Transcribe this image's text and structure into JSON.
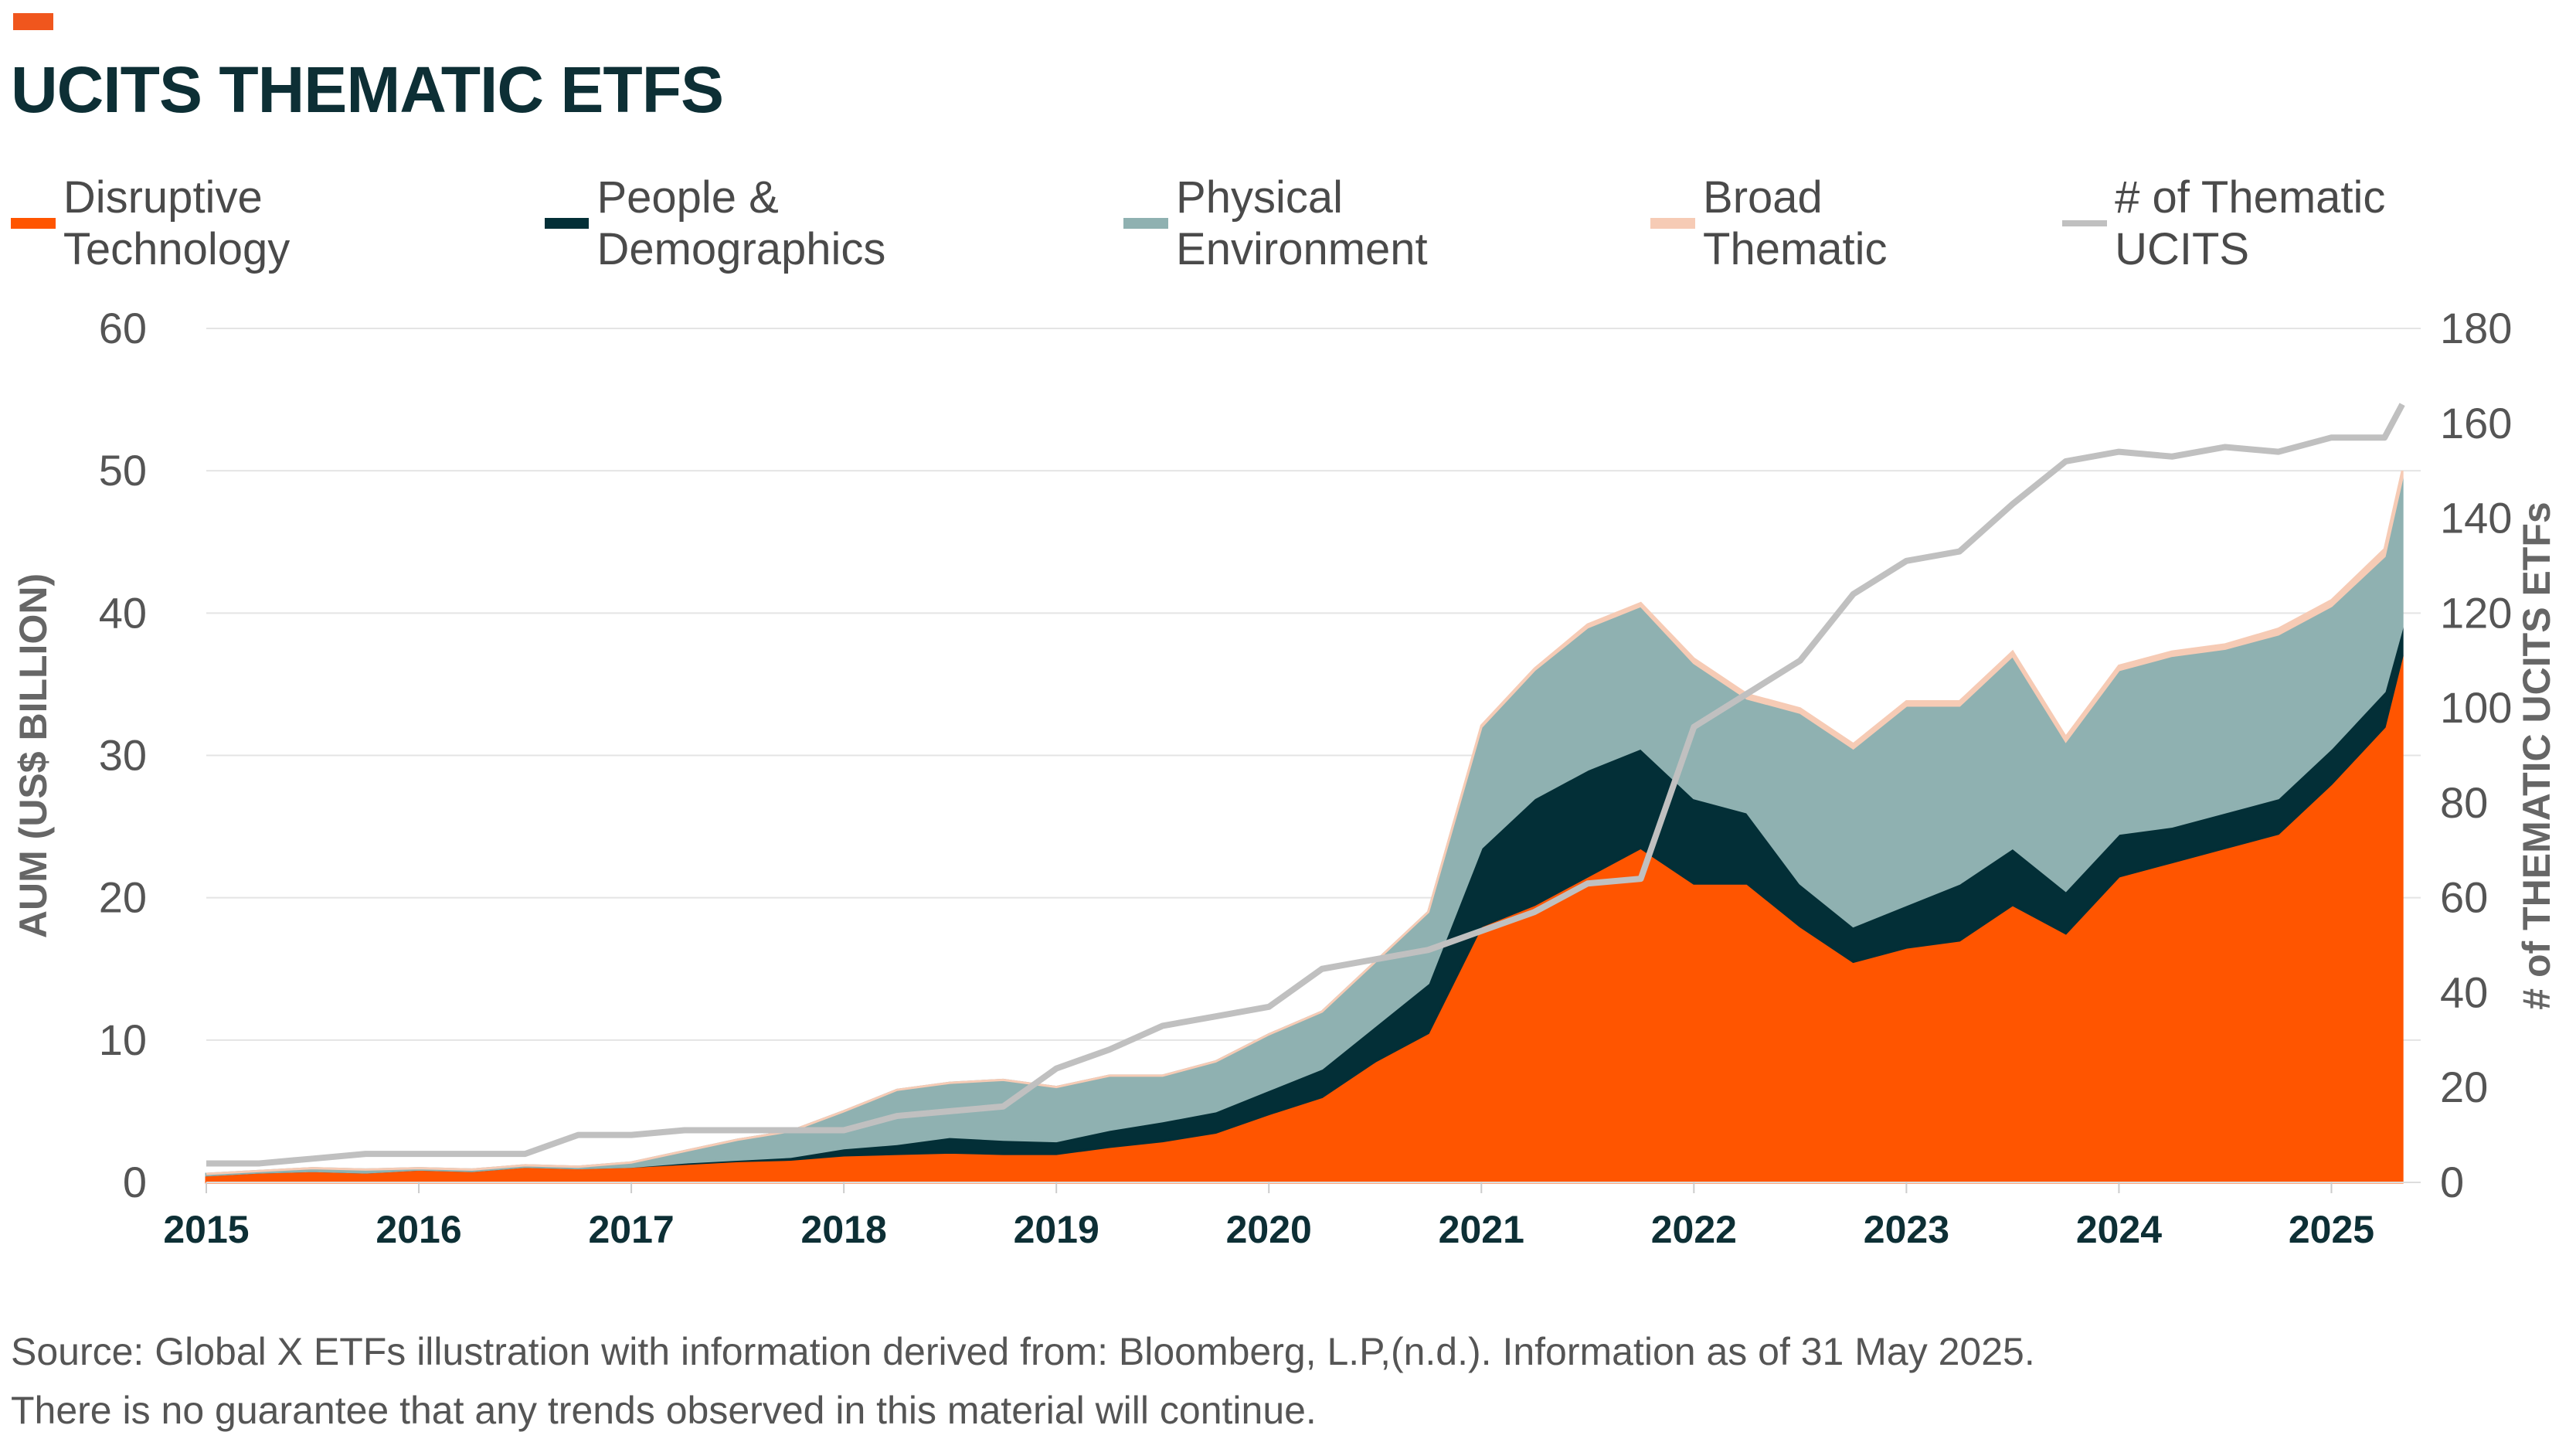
{
  "title": "UCITS THEMATIC ETFS",
  "colors": {
    "accent": "#f0561d",
    "title": "#0d2f35"
  },
  "footnotes": [
    "Source: Global X ETFs illustration with information derived from: Bloomberg, L.P,(n.d.). Information as of 31 May 2025.",
    "There is no guarantee that any trends observed in this material will continue."
  ],
  "chart_data": {
    "type": "area",
    "stacked": true,
    "title": "UCITS THEMATIC ETFS",
    "ylabel": "AUM (US$ BILLION)",
    "y2label": "# of THEMATIC UCITS ETFs",
    "ylim": [
      0,
      60
    ],
    "y2lim": [
      0,
      180
    ],
    "yticks": [
      "0",
      "10",
      "20",
      "30",
      "40",
      "50",
      "60"
    ],
    "y2ticks": [
      "0",
      "20",
      "40",
      "60",
      "80",
      "100",
      "120",
      "140",
      "160",
      "180"
    ],
    "xticks": [
      "2015",
      "2016",
      "2017",
      "2018",
      "2019",
      "2020",
      "2021",
      "2022",
      "2023",
      "2024",
      "2025"
    ],
    "grid": true,
    "legend_position": "top",
    "x": [
      "2015-01",
      "2015-04",
      "2015-07",
      "2015-10",
      "2016-01",
      "2016-04",
      "2016-07",
      "2016-10",
      "2017-01",
      "2017-04",
      "2017-07",
      "2017-10",
      "2018-01",
      "2018-04",
      "2018-07",
      "2018-10",
      "2019-01",
      "2019-04",
      "2019-07",
      "2019-10",
      "2020-01",
      "2020-04",
      "2020-07",
      "2020-10",
      "2021-01",
      "2021-04",
      "2021-07",
      "2021-10",
      "2022-01",
      "2022-04",
      "2022-07",
      "2022-10",
      "2023-01",
      "2023-04",
      "2023-07",
      "2023-10",
      "2024-01",
      "2024-04",
      "2024-07",
      "2024-10",
      "2025-01",
      "2025-04",
      "2025-05"
    ],
    "series": [
      {
        "name": "Disruptive Technology",
        "color": "#ff5500",
        "axis": "left",
        "values": [
          0.5,
          0.7,
          0.8,
          0.7,
          0.9,
          0.8,
          1.1,
          1.0,
          1.1,
          1.3,
          1.5,
          1.6,
          1.9,
          2.0,
          2.1,
          2.0,
          2.0,
          2.5,
          2.9,
          3.5,
          4.8,
          6.0,
          8.5,
          10.5,
          18.0,
          19.5,
          21.5,
          23.5,
          21.0,
          21.0,
          18.0,
          15.5,
          16.5,
          17.0,
          19.5,
          17.5,
          21.5,
          22.5,
          23.5,
          24.5,
          28.0,
          32.0,
          37.0
        ]
      },
      {
        "name": "People & Demographics",
        "color": "#032f37",
        "axis": "left",
        "values": [
          0,
          0,
          0,
          0,
          0,
          0,
          0,
          0,
          0,
          0.1,
          0.1,
          0.2,
          0.5,
          0.7,
          1.1,
          1.0,
          0.9,
          1.2,
          1.4,
          1.5,
          1.7,
          2.0,
          2.5,
          3.5,
          5.5,
          7.5,
          7.5,
          7.0,
          6.0,
          5.0,
          3.0,
          2.5,
          3.0,
          4.0,
          4.0,
          3.0,
          3.0,
          2.5,
          2.5,
          2.5,
          2.5,
          2.5,
          2.0
        ]
      },
      {
        "name": "Physical Environment",
        "color": "#8fb1b1",
        "axis": "left",
        "values": [
          0.1,
          0.1,
          0.2,
          0.2,
          0.1,
          0.1,
          0.1,
          0.1,
          0.3,
          0.8,
          1.4,
          1.8,
          2.6,
          3.8,
          3.8,
          4.2,
          3.8,
          3.8,
          3.2,
          3.5,
          3.9,
          4.0,
          4.5,
          5.0,
          8.5,
          9.0,
          10.0,
          10.0,
          9.5,
          8.0,
          12.0,
          12.5,
          14.0,
          12.5,
          13.5,
          10.5,
          11.5,
          12.0,
          11.5,
          11.5,
          10.0,
          9.5,
          10.5
        ]
      },
      {
        "name": "Broad Thematic",
        "color": "#f6cbb5",
        "axis": "left",
        "values": [
          0,
          0,
          0,
          0,
          0,
          0,
          0,
          0,
          0,
          0,
          0,
          0,
          0,
          0,
          0,
          0,
          0,
          0,
          0,
          0,
          0,
          0,
          0,
          0,
          0.1,
          0.1,
          0.2,
          0.2,
          0.3,
          0.3,
          0.3,
          0.3,
          0.3,
          0.3,
          0.3,
          0.3,
          0.3,
          0.3,
          0.3,
          0.4,
          0.4,
          0.5,
          0.5
        ]
      },
      {
        "name": "# of Thematic UCITS",
        "color": "#c0c0c0",
        "axis": "right",
        "type": "line",
        "values": [
          4,
          4,
          5,
          6,
          6,
          6,
          6,
          10,
          10,
          11,
          11,
          11,
          11,
          14,
          15,
          16,
          24,
          28,
          33,
          35,
          37,
          45,
          47,
          49,
          53,
          57,
          63,
          64,
          96,
          103,
          110,
          124,
          131,
          133,
          143,
          152,
          154,
          153,
          155,
          154,
          157,
          157,
          164
        ]
      }
    ]
  }
}
